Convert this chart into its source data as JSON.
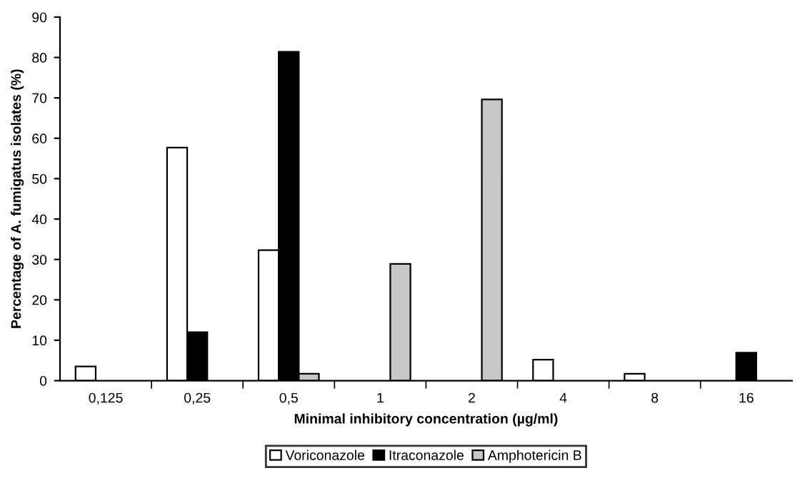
{
  "chart_data": {
    "type": "bar",
    "xlabel": "Minimal inhibitory concentration (µg/ml)",
    "ylabel": "Percentage of A. fumigatus isolates (%)",
    "categories": [
      "0,125",
      "0,25",
      "0,5",
      "1",
      "2",
      "4",
      "8",
      "16"
    ],
    "series": [
      {
        "name": "Voriconazole",
        "color": "#ffffff",
        "values": [
          3.5,
          57.7,
          32.3,
          null,
          null,
          5.2,
          1.7,
          null
        ]
      },
      {
        "name": "Itraconazole",
        "color": "#000000",
        "values": [
          null,
          12,
          81.4,
          null,
          null,
          null,
          null,
          6.9
        ]
      },
      {
        "name": "Amphotericin B",
        "color": "#c8c8c8",
        "values": [
          null,
          null,
          1.7,
          28.9,
          69.6,
          null,
          null,
          null
        ]
      }
    ],
    "ylim": [
      0,
      90
    ],
    "yticks": [
      0,
      10,
      20,
      30,
      40,
      50,
      60,
      70,
      80,
      90
    ],
    "grid": false,
    "legend": "bottom"
  }
}
